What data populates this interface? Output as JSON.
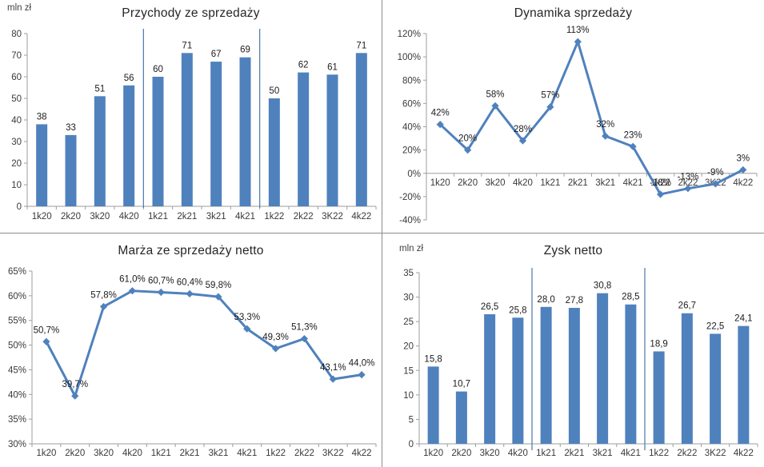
{
  "page": {
    "background": "#ffffff",
    "divider_color": "#8c8c8c"
  },
  "colors": {
    "series": "#4f81bd",
    "separator": "#4a77a8",
    "axis": "#9e9e9e",
    "tick_text": "#3a3a3a",
    "label_text": "#1c1c1c",
    "title_text": "#262626"
  },
  "chart_data": [
    {
      "type": "bar",
      "title": "Przychody ze sprzedaży",
      "unit": "mln zł",
      "categories": [
        "1k20",
        "2k20",
        "3k20",
        "4k20",
        "1k21",
        "2k21",
        "3k21",
        "4k21",
        "1k22",
        "2k22",
        "3K22",
        "4k22"
      ],
      "values": [
        38,
        33,
        51,
        56,
        60,
        71,
        67,
        69,
        50,
        62,
        61,
        71
      ],
      "labels": [
        "38",
        "33",
        "51",
        "56",
        "60",
        "71",
        "67",
        "69",
        "50",
        "62",
        "61",
        "71"
      ],
      "ylim": [
        0,
        80
      ],
      "ytick_step": 10,
      "ytick_suffix": "",
      "xaxis_at_zero": false,
      "separators": [
        4,
        8
      ],
      "grid": false,
      "legend": null
    },
    {
      "type": "line",
      "title": "Dynamika sprzedaży",
      "unit": "",
      "categories": [
        "1k20",
        "2k20",
        "3k20",
        "4k20",
        "1k21",
        "2k21",
        "3k21",
        "4k21",
        "1k22",
        "2k22",
        "3K22",
        "4k22"
      ],
      "values": [
        42,
        20,
        58,
        28,
        57,
        113,
        32,
        23,
        -18,
        -13,
        -9,
        3
      ],
      "labels": [
        "42%",
        "20%",
        "58%",
        "28%",
        "57%",
        "113%",
        "32%",
        "23%",
        "-18%",
        "-13%",
        "-9%",
        "3%"
      ],
      "ylim": [
        -40,
        120
      ],
      "ytick_step": 20,
      "ytick_suffix": "%",
      "xaxis_at_zero": true,
      "separators": [],
      "grid": false,
      "legend": null
    },
    {
      "type": "line",
      "title": "Marża ze sprzedaży netto",
      "unit": "",
      "categories": [
        "1k20",
        "2k20",
        "3k20",
        "4k20",
        "1k21",
        "2k21",
        "3k21",
        "4k21",
        "1k22",
        "2k22",
        "3K22",
        "4k22"
      ],
      "values": [
        50.7,
        39.7,
        57.8,
        61.0,
        60.7,
        60.4,
        59.8,
        53.3,
        49.3,
        51.3,
        43.1,
        44.0
      ],
      "labels": [
        "50,7%",
        "39,7%",
        "57,8%",
        "61,0%",
        "60,7%",
        "60,4%",
        "59,8%",
        "53,3%",
        "49,3%",
        "51,3%",
        "43,1%",
        "44,0%"
      ],
      "ylim": [
        30,
        65
      ],
      "ytick_step": 5,
      "ytick_suffix": "%",
      "xaxis_at_zero": false,
      "separators": [],
      "grid": false,
      "legend": null
    },
    {
      "type": "bar",
      "title": "Zysk netto",
      "unit": "mln zł",
      "categories": [
        "1k20",
        "2k20",
        "3k20",
        "4k20",
        "1k21",
        "2k21",
        "3k21",
        "4k21",
        "1k22",
        "2k22",
        "3K22",
        "4k22"
      ],
      "values": [
        15.8,
        10.7,
        26.5,
        25.8,
        28.0,
        27.8,
        30.8,
        28.5,
        18.9,
        26.7,
        22.5,
        24.1
      ],
      "labels": [
        "15,8",
        "10,7",
        "26,5",
        "25,8",
        "28,0",
        "27,8",
        "30,8",
        "28,5",
        "18,9",
        "26,7",
        "22,5",
        "24,1"
      ],
      "ylim": [
        0,
        35
      ],
      "ytick_step": 5,
      "ytick_suffix": "",
      "xaxis_at_zero": false,
      "separators": [
        4,
        8
      ],
      "grid": false,
      "legend": null
    }
  ]
}
